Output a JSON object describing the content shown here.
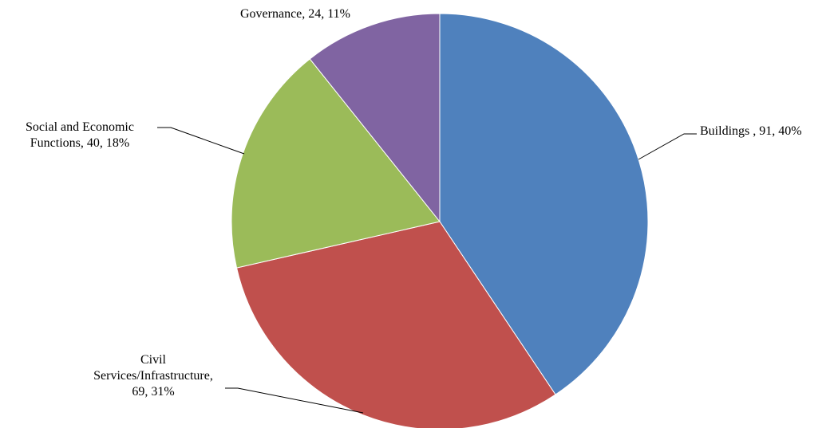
{
  "chart_data": {
    "type": "pie",
    "title": "",
    "start_angle_deg": 0,
    "direction": "clockwise",
    "slices": [
      {
        "label": "Buildings ",
        "value": 91,
        "percent": "40%",
        "color": "#4f81bd",
        "label_lines": [
          "Buildings , 91, 40%"
        ]
      },
      {
        "label": "Civil Services/Infrastructure",
        "value": 69,
        "percent": "31%",
        "color": "#c0504d",
        "label_lines": [
          "Civil",
          "Services/Infrastructure,",
          "69, 31%"
        ]
      },
      {
        "label": "Social and Economic Functions",
        "value": 40,
        "percent": "18%",
        "color": "#9bbb59",
        "label_lines": [
          "Social and Economic",
          "Functions, 40, 18%"
        ]
      },
      {
        "label": "Governance",
        "value": 24,
        "percent": "11%",
        "color": "#8064a2",
        "label_lines": [
          "Governance, 24, 11%"
        ]
      }
    ]
  }
}
